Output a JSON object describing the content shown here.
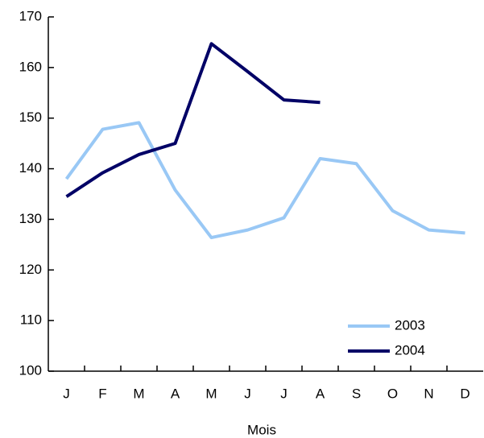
{
  "chart_data": {
    "type": "line",
    "x_label": "Mois",
    "categories": [
      "J",
      "F",
      "M",
      "A",
      "M",
      "J",
      "J",
      "A",
      "S",
      "O",
      "N",
      "D"
    ],
    "series": [
      {
        "name": "2003",
        "color": "#99c8f5",
        "values": [
          138,
          147.8,
          149.1,
          135.8,
          126.4,
          127.9,
          130.3,
          142,
          141,
          131.7,
          127.9,
          127.3
        ]
      },
      {
        "name": "2004",
        "color": "#000066",
        "values": [
          134.5,
          139.2,
          142.8,
          145,
          164.7,
          159.2,
          153.6,
          153.1,
          null,
          null,
          null,
          null
        ]
      }
    ],
    "ylim": [
      100,
      170
    ],
    "yticks": [
      100,
      110,
      120,
      130,
      140,
      150,
      160,
      170
    ],
    "legend": "lower right"
  }
}
